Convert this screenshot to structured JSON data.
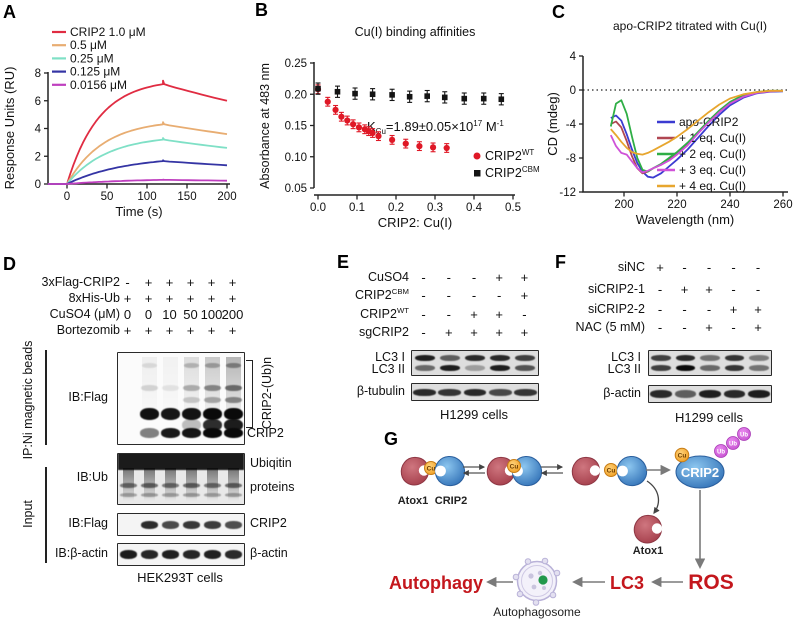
{
  "labels": {
    "A": "A",
    "B": "B",
    "C": "C",
    "D": "D",
    "E": "E",
    "F": "F",
    "G": "G"
  },
  "chart_data": [
    {
      "id": "A",
      "type": "line",
      "title": "",
      "xlabel": "Time (s)",
      "ylabel": "Response Units (RU)",
      "xlim": [
        -25,
        200
      ],
      "ylim": [
        0,
        8
      ],
      "xticks": [
        0,
        50,
        100,
        150,
        200
      ],
      "yticks": [
        0,
        2,
        4,
        6,
        8
      ],
      "association_end_s": 120,
      "dissociation_end_s": 200,
      "series": [
        {
          "name": "CRIP2 1.0 μM",
          "color": "#e02c42",
          "peak_ru": 7.2,
          "end_ru": 6.0,
          "k_on": 0.025
        },
        {
          "name": "0.5 μM",
          "color": "#e8ad72",
          "peak_ru": 4.3,
          "end_ru": 3.6,
          "k_on": 0.022
        },
        {
          "name": "0.25 μM",
          "color": "#7fe0c6",
          "peak_ru": 3.2,
          "end_ru": 2.6,
          "k_on": 0.02
        },
        {
          "name": "0.125 μM",
          "color": "#3434a4",
          "peak_ru": 1.65,
          "end_ru": 1.35,
          "k_on": 0.014
        },
        {
          "name": "0.0156 μM",
          "color": "#bf3fbf",
          "peak_ru": 0.3,
          "end_ru": 0.24,
          "k_on": 0.012
        }
      ]
    },
    {
      "id": "B",
      "type": "scatter",
      "title": "Cu(I) binding affinities",
      "xlabel": "CRIP2: Cu(I)",
      "ylabel": "Absorbance at 483 nm",
      "xlim": [
        0,
        0.5
      ],
      "ylim": [
        0.05,
        0.25
      ],
      "xticks": [
        0.0,
        0.1,
        0.2,
        0.3,
        0.4,
        0.5
      ],
      "yticks": [
        0.05,
        0.1,
        0.15,
        0.2,
        0.25
      ],
      "ann_parts": [
        {
          "t": "K"
        },
        {
          "t": "Cu",
          "s": "sub"
        },
        {
          "t": "=1.89±0.05×10"
        },
        {
          "t": "17",
          "s": "sup"
        },
        {
          "t": " M"
        },
        {
          "t": "-1",
          "s": "sup"
        }
      ],
      "series": [
        {
          "name_parts": [
            {
              "t": "CRIP2"
            },
            {
              "t": "WT",
              "s": "sup"
            }
          ],
          "marker": "circle",
          "color": "#df1826",
          "err": 0.007,
          "x": [
            0.0,
            0.025,
            0.045,
            0.06,
            0.075,
            0.09,
            0.105,
            0.12,
            0.13,
            0.14,
            0.155,
            0.19,
            0.225,
            0.26,
            0.295,
            0.33
          ],
          "y": [
            0.208,
            0.188,
            0.175,
            0.164,
            0.158,
            0.152,
            0.147,
            0.144,
            0.141,
            0.138,
            0.133,
            0.127,
            0.121,
            0.117,
            0.115,
            0.114
          ]
        },
        {
          "name_parts": [
            {
              "t": "CRIP2"
            },
            {
              "t": "CBM",
              "s": "sup"
            }
          ],
          "marker": "square",
          "color": "#141414",
          "err": 0.009,
          "x": [
            0.0,
            0.05,
            0.095,
            0.14,
            0.19,
            0.235,
            0.28,
            0.325,
            0.375,
            0.425,
            0.47
          ],
          "y": [
            0.209,
            0.204,
            0.201,
            0.2,
            0.199,
            0.196,
            0.197,
            0.195,
            0.193,
            0.193,
            0.192
          ]
        }
      ]
    },
    {
      "id": "C",
      "type": "line",
      "title": "apo-CRIP2 titrated with Cu(I)",
      "xlabel": "Wavelength (nm)",
      "ylabel": "CD (mdeg)",
      "xlim": [
        193,
        262
      ],
      "ylim": [
        -12,
        4
      ],
      "xticks": [
        200,
        220,
        240,
        260
      ],
      "yticks": [
        -12,
        -8,
        -4,
        0,
        4
      ],
      "zero_line": true,
      "x": [
        195,
        197,
        199,
        201,
        203,
        205,
        207,
        209,
        211,
        214,
        217,
        220,
        224,
        228,
        232,
        236,
        240,
        245,
        250,
        255,
        260
      ],
      "series": [
        {
          "name": "apo-CRIP2",
          "color": "#3b3bd1",
          "y": [
            -3.3,
            -3.0,
            -3.6,
            -5.2,
            -7.0,
            -8.6,
            -9.6,
            -10.2,
            -10.3,
            -9.8,
            -9.0,
            -8.2,
            -7.0,
            -5.6,
            -4.2,
            -2.9,
            -1.8,
            -0.9,
            -0.4,
            -0.2,
            -0.15
          ]
        },
        {
          "name": "+ 1 eq. Cu(I)",
          "color": "#b04752",
          "y": [
            -4.0,
            -3.7,
            -4.4,
            -6.0,
            -7.8,
            -9.2,
            -9.8,
            -9.6,
            -9.2,
            -8.8,
            -8.2,
            -7.5,
            -6.4,
            -5.0,
            -3.7,
            -2.5,
            -1.5,
            -0.7,
            -0.3,
            -0.15,
            -0.1
          ]
        },
        {
          "name": "+ 2 eq. Cu(I)",
          "color": "#2fae46",
          "y": [
            -4.3,
            -1.6,
            -1.2,
            -2.8,
            -5.5,
            -8.0,
            -9.4,
            -9.6,
            -9.2,
            -8.7,
            -8.0,
            -7.3,
            -6.2,
            -4.9,
            -3.6,
            -2.4,
            -1.4,
            -0.6,
            -0.25,
            -0.1,
            -0.1
          ]
        },
        {
          "name": "+ 3 eq. Cu(I)",
          "color": "#cf52d8",
          "y": [
            -5.3,
            -6.6,
            -7.4,
            -7.6,
            -8.4,
            -9.2,
            -9.7,
            -9.5,
            -9.2,
            -8.8,
            -8.3,
            -7.6,
            -6.5,
            -5.1,
            -3.8,
            -2.6,
            -1.6,
            -0.8,
            -0.35,
            -0.15,
            -0.1
          ]
        },
        {
          "name": "+ 4 eq. Cu(I)",
          "color": "#e7a62e",
          "y": [
            -4.6,
            -5.3,
            -6.1,
            -6.8,
            -7.3,
            -7.5,
            -7.6,
            -7.4,
            -7.1,
            -6.6,
            -6.1,
            -5.5,
            -4.6,
            -3.6,
            -2.6,
            -1.7,
            -1.0,
            -0.5,
            -0.25,
            -0.1,
            -0.1
          ]
        }
      ]
    }
  ],
  "panelD": {
    "conditions": [
      {
        "parts": [
          {
            "t": "3xFlag-CRIP2"
          }
        ],
        "values": [
          "-",
          "+",
          "+",
          "+",
          "+",
          "+"
        ]
      },
      {
        "parts": [
          {
            "t": "8xHis-Ub"
          }
        ],
        "values": [
          "+",
          "+",
          "+",
          "+",
          "+",
          "+"
        ]
      },
      {
        "parts": [
          {
            "t": "CuSO4 (μM)"
          }
        ],
        "values": [
          "0",
          "0",
          "10",
          "50",
          "100",
          "200"
        ]
      },
      {
        "parts": [
          {
            "t": "Bortezomib"
          }
        ],
        "values": [
          "+",
          "+",
          "+",
          "+",
          "+",
          "+"
        ]
      }
    ],
    "group1_label": "IP:Ni magnetic beads",
    "group2_label": "Input",
    "blot1": {
      "label": "IB:Flag",
      "right_rot": "CRIP2-(Ub)n",
      "right": "CRIP2",
      "spec": {
        "lanes": 6,
        "bg": "#fbfbfb",
        "smears": [
          0,
          0.05,
          0.04,
          0.12,
          0.2,
          0.28
        ],
        "rows": [
          {
            "y": 0.14,
            "h": 5,
            "wf": 0.75,
            "ints": [
              0,
              0.1,
              0,
              0.22,
              0.28,
              0.38
            ]
          },
          {
            "y": 0.38,
            "h": 6,
            "wf": 0.8,
            "ints": [
              0,
              0.14,
              0.08,
              0.28,
              0.42,
              0.52
            ]
          },
          {
            "y": 0.52,
            "h": 6,
            "wf": 0.8,
            "ints": [
              0,
              0,
              0,
              0.18,
              0.3,
              0.42
            ]
          },
          {
            "y": 0.67,
            "h": 12,
            "wf": 0.92,
            "ints": [
              0,
              0.97,
              0.95,
              0.96,
              1,
              1
            ]
          },
          {
            "y": 0.79,
            "h": 12,
            "wf": 0.9,
            "ints": [
              0,
              0,
              0,
              0.25,
              0.85,
              0.92
            ]
          },
          {
            "y": 0.88,
            "h": 10,
            "wf": 0.88,
            "ints": [
              0,
              0.5,
              0.93,
              0.95,
              1,
              1
            ]
          }
        ]
      }
    },
    "blot2": {
      "label": "IB:Ub",
      "right1": "Ubiqitin",
      "right2": "proteins",
      "spec": {
        "lanes": 6,
        "bg": "#e9e9e9",
        "darktop": 0.36,
        "streak": 0.5,
        "rows": [
          {
            "y": 0.62,
            "h": 5,
            "wf": 0.85,
            "ints": [
              0.5,
              0.55,
              0.5,
              0.55,
              0.5,
              0.55
            ]
          },
          {
            "y": 0.82,
            "h": 4,
            "wf": 0.8,
            "ints": [
              0.3,
              0.32,
              0.3,
              0.32,
              0.3,
              0.32
            ]
          }
        ]
      }
    },
    "blot3": {
      "label": "IB:Flag",
      "right": "CRIP2",
      "spec": {
        "lanes": 6,
        "bg": "#f4f4f4",
        "rows": [
          {
            "y": 0.5,
            "h": 8,
            "wf": 0.82,
            "ints": [
              0,
              0.85,
              0.72,
              0.8,
              0.78,
              0.7
            ]
          }
        ]
      }
    },
    "blot4": {
      "label": "IB:β-actin",
      "right": "β-actin",
      "spec": {
        "lanes": 6,
        "bg": "#f4f4f4",
        "rows": [
          {
            "y": 0.5,
            "h": 9,
            "wf": 0.85,
            "ints": [
              0.92,
              0.88,
              0.9,
              0.88,
              0.9,
              0.86
            ]
          }
        ]
      }
    },
    "caption": "HEK293T cells"
  },
  "panelE": {
    "conditions": [
      {
        "parts": [
          {
            "t": "CuSO4"
          }
        ],
        "values": [
          "-",
          "-",
          "-",
          "+",
          "+"
        ]
      },
      {
        "parts": [
          {
            "t": "CRIP2"
          },
          {
            "t": "CBM",
            "s": "sup"
          }
        ],
        "values": [
          "-",
          "-",
          "-",
          "-",
          "+"
        ]
      },
      {
        "parts": [
          {
            "t": "CRIP2"
          },
          {
            "t": "WT",
            "s": "sup"
          }
        ],
        "values": [
          "-",
          "-",
          "+",
          "+",
          "-"
        ]
      },
      {
        "parts": [
          {
            "t": "sgCRIP2"
          }
        ],
        "values": [
          "-",
          "+",
          "+",
          "+",
          "+"
        ]
      }
    ],
    "band1": "LC3 I",
    "band2": "LC3 II",
    "loading": "β-tubulin",
    "caption": "H1299 cells",
    "lc3_spec": {
      "lanes": 5,
      "bg": "#dedede",
      "rows": [
        {
          "y": 0.3,
          "h": 6,
          "wf": 0.8,
          "ints": [
            0.9,
            0.6,
            0.85,
            0.85,
            0.75
          ]
        },
        {
          "y": 0.7,
          "h": 6,
          "wf": 0.8,
          "ints": [
            0.55,
            0.9,
            0.3,
            0.9,
            0.65
          ]
        }
      ]
    },
    "load_spec": {
      "lanes": 5,
      "bg": "#dedede",
      "rows": [
        {
          "y": 0.5,
          "h": 7,
          "wf": 0.9,
          "ints": [
            0.85,
            0.8,
            0.85,
            0.7,
            0.8
          ]
        }
      ]
    }
  },
  "panelF": {
    "conditions": [
      {
        "parts": [
          {
            "t": "siNC"
          }
        ],
        "values": [
          "+",
          "-",
          "-",
          "-",
          "-"
        ]
      },
      {
        "parts": [
          {
            "t": "siCRIP2-1"
          }
        ],
        "values": [
          "-",
          "+",
          "+",
          "-",
          "-"
        ]
      },
      {
        "parts": [
          {
            "t": "siCRIP2-2"
          }
        ],
        "values": [
          "-",
          "-",
          "-",
          "+",
          "+"
        ]
      },
      {
        "parts": [
          {
            "t": "NAC (5 mM)"
          }
        ],
        "values": [
          "-",
          "-",
          "+",
          "-",
          "+"
        ]
      }
    ],
    "band1": "LC3 I",
    "band2": "LC3 II",
    "loading": "β-actin",
    "caption": "H1299 cells",
    "lc3_spec": {
      "lanes": 5,
      "bg": "#dedede",
      "rows": [
        {
          "y": 0.3,
          "h": 6,
          "wf": 0.8,
          "ints": [
            0.75,
            0.85,
            0.5,
            0.8,
            0.45
          ]
        },
        {
          "y": 0.7,
          "h": 6,
          "wf": 0.8,
          "ints": [
            0.75,
            1,
            0.55,
            0.8,
            0.5
          ]
        }
      ]
    },
    "load_spec": {
      "lanes": 5,
      "bg": "#dedede",
      "rows": [
        {
          "y": 0.5,
          "h": 8,
          "wf": 0.88,
          "ints": [
            0.85,
            0.6,
            0.9,
            0.85,
            0.9
          ]
        }
      ]
    }
  },
  "panelG": {
    "labels": {
      "atox1": "Atox1",
      "crip2": "CRIP2",
      "cu": "Cu",
      "ub": "Ub",
      "crip2_big": "CRIP2",
      "ros": "ROS",
      "lc3": "LC3",
      "autophagy": "Autophagy",
      "autophagosome": "Autophagosome"
    },
    "colors": {
      "red_text": "#c4171d",
      "atox1": "#b34d58",
      "crip2": "#3f8fd4",
      "cu": "#f2a52f",
      "ub": "#d45fd8"
    }
  }
}
